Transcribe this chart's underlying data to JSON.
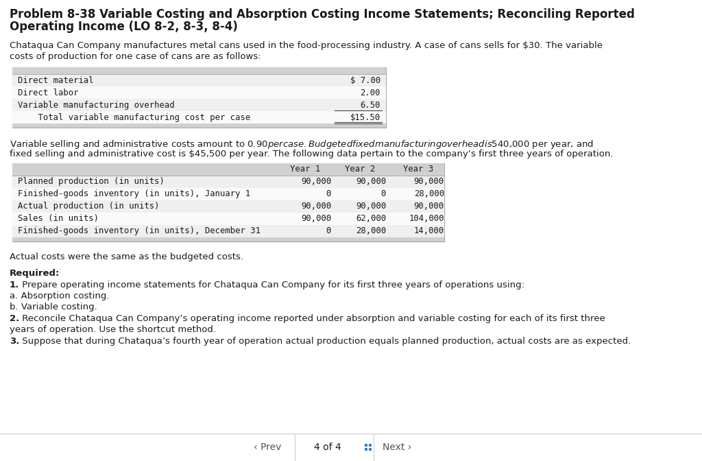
{
  "title_line1": "Problem 8-38 Variable Costing and Absorption Costing Income Statements; Reconciling Reported",
  "title_line2": "Operating Income (LO 8-2, 8-3, 8-4)",
  "intro_line1": "Chataqua Can Company manufactures metal cans used in the food-processing industry. A case of cans sells for $30. The variable",
  "intro_line2": "costs of production for one case of cans are as follows:",
  "cost_rows": [
    [
      "Direct material",
      "$ 7.00",
      false
    ],
    [
      "Direct labor",
      "2.00",
      false
    ],
    [
      "Variable manufacturing overhead",
      "6.50",
      false
    ],
    [
      "    Total variable manufacturing cost per case",
      "$15.50",
      true
    ]
  ],
  "mid_line1": "Variable selling and administrative costs amount to $0.90 per case. Budgeted fixed manufacturing overhead is $540,000 per year, and",
  "mid_line2": "fixed selling and administrative cost is $45,500 per year. The following data pertain to the company’s first three years of operation.",
  "dt_headers": [
    "Year 1",
    "Year 2",
    "Year 3"
  ],
  "dt_rows": [
    [
      "Planned production (in units)",
      "90,000",
      "90,000",
      "90,000"
    ],
    [
      "Finished-goods inventory (in units), January 1",
      "0",
      "0",
      "28,000"
    ],
    [
      "Actual production (in units)",
      "90,000",
      "90,000",
      "90,000"
    ],
    [
      "Sales (in units)",
      "90,000",
      "62,000",
      "104,000"
    ],
    [
      "Finished-goods inventory (in units), December 31",
      "0",
      "28,000",
      "14,000"
    ]
  ],
  "actual_text": "Actual costs were the same as the budgeted costs.",
  "req_label": "Required:",
  "req1_bold": "1.",
  "req1_text": " Prepare operating income statements for Chataqua Can Company for its first three years of operations using:",
  "req1a": "a. Absorption costing.",
  "req1b": "b. Variable costing.",
  "req2_bold": "2.",
  "req2_text": " Reconcile Chataqua Can Company’s operating income reported under absorption and variable costing for each of its first three",
  "req2_text2": "years of operation. Use the shortcut method.",
  "req3_bold": "3.",
  "req3_text": " Suppose that during Chataqua’s fourth year of operation actual production equals planned production, actual costs are as expected.",
  "footer_prev": "‹ Prev",
  "footer_page": "4 of 4",
  "footer_next": "Next ›",
  "bg": "#ffffff",
  "table_top_bg": "#d9d9d9",
  "table_row_bg": "#f2f2f2",
  "table_border": "#aaaaaa",
  "text_dark": "#1a1a1a",
  "mono": "DejaVu Sans Mono",
  "sans": "DejaVu Sans",
  "title_fs": 12,
  "body_fs": 9.5,
  "table_fs": 8.8
}
